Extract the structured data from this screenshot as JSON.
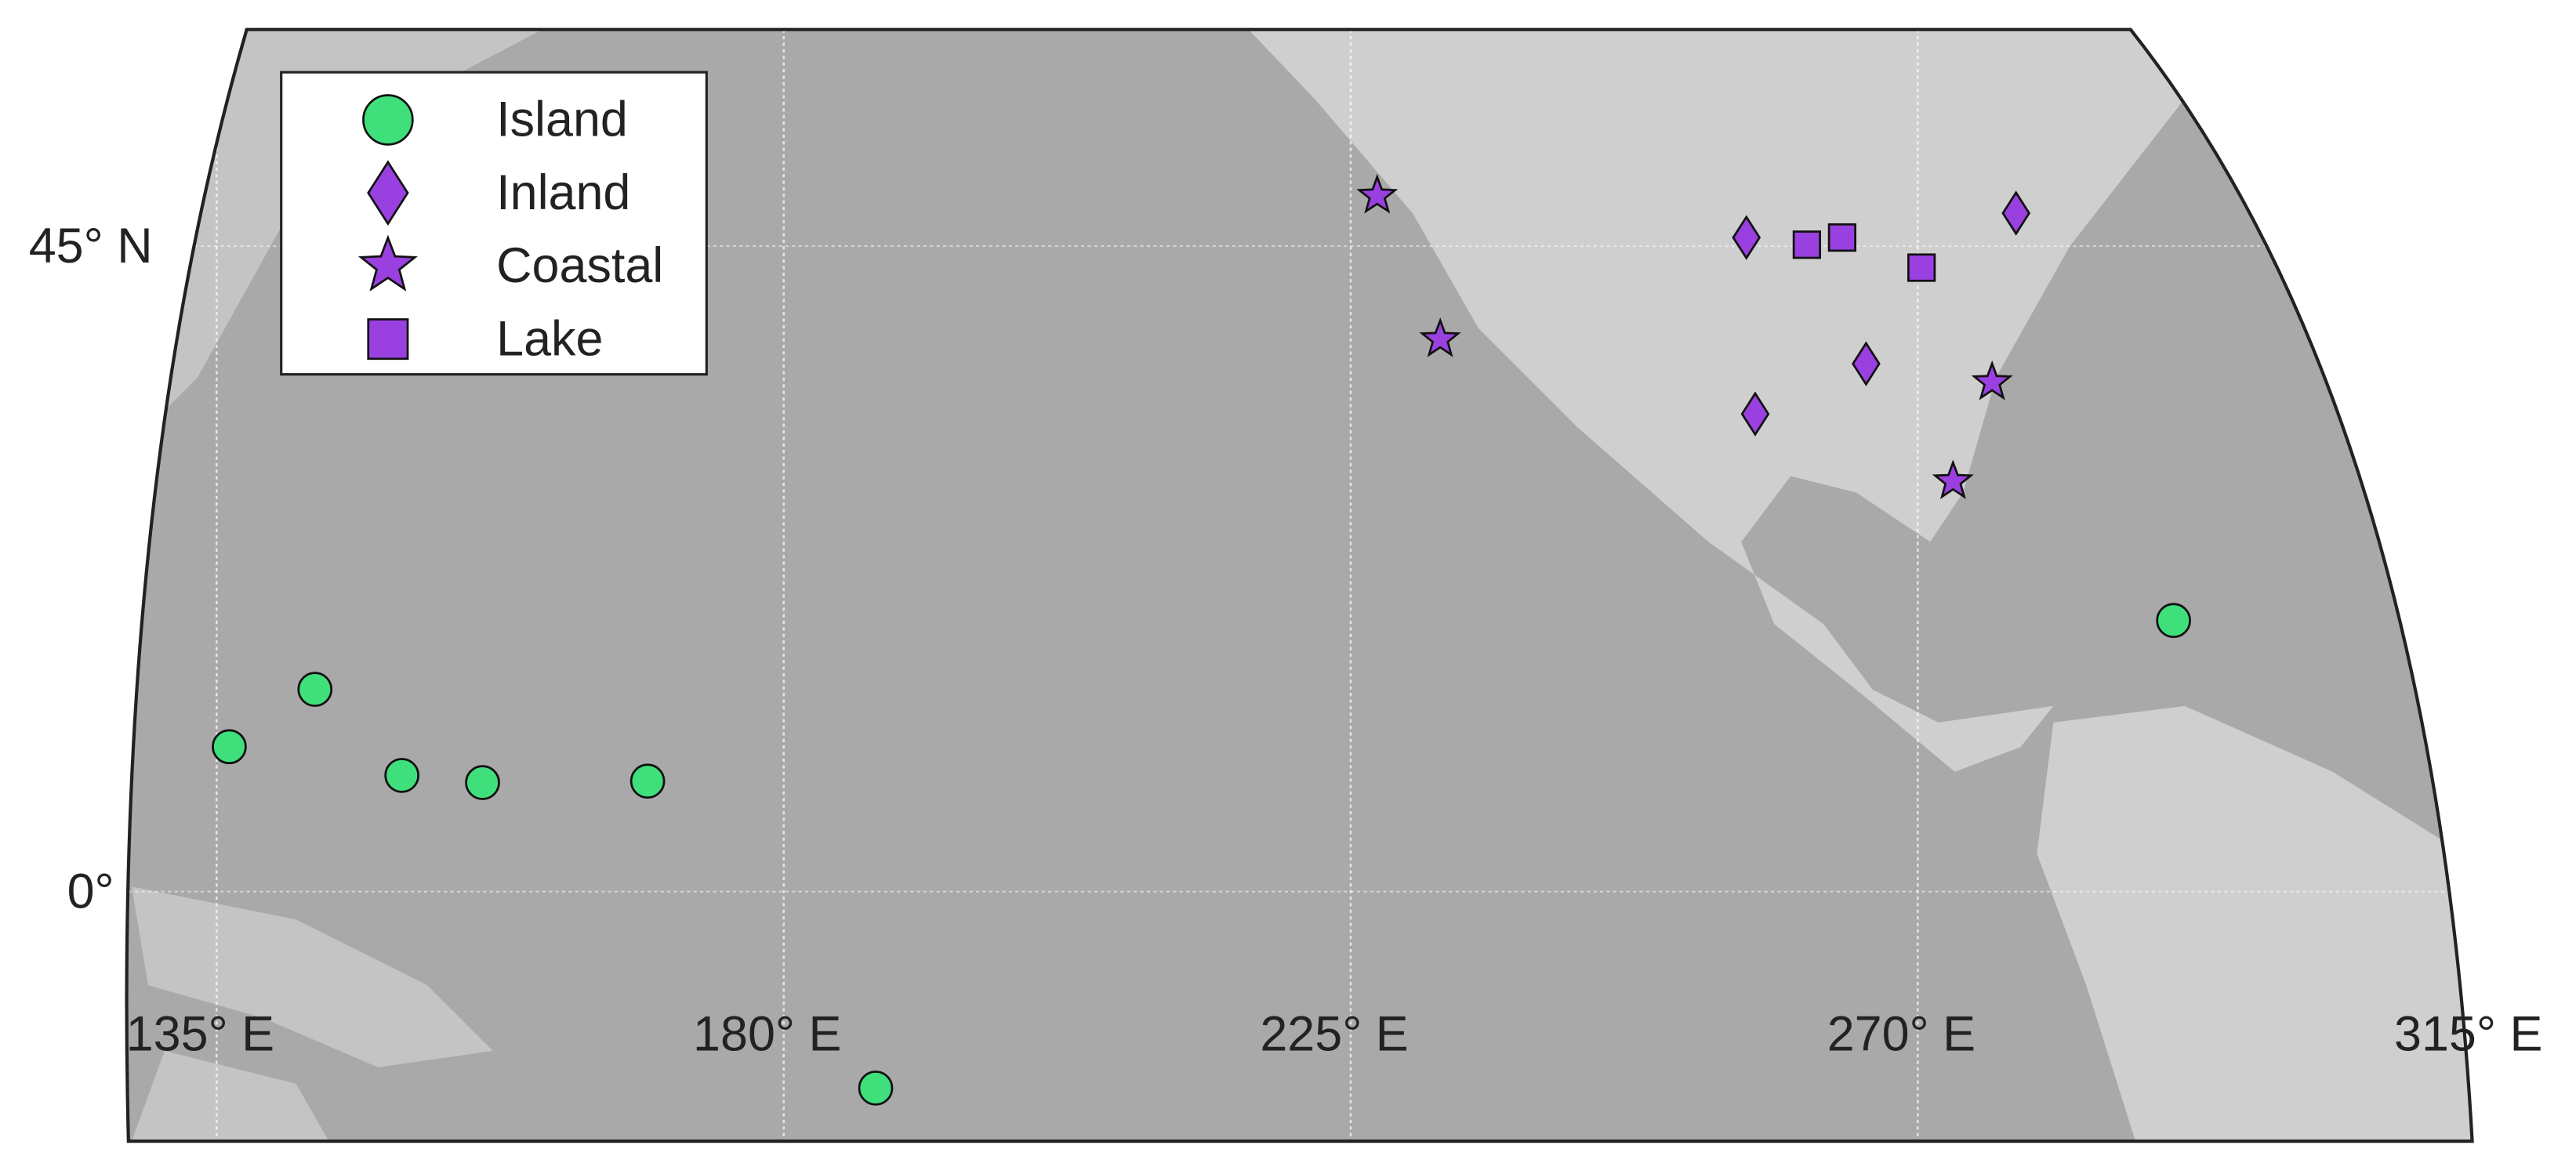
{
  "chart_data": {
    "type": "scatter",
    "xlim": [
      128,
      314
    ],
    "ylim": [
      -17.4,
      60.1
    ],
    "xticks": [
      {
        "value": 135,
        "label": "135° E"
      },
      {
        "value": 180,
        "label": "180° E"
      },
      {
        "value": 225,
        "label": "225° E"
      },
      {
        "value": 270,
        "label": "270° E"
      },
      {
        "value": 315,
        "label": "315° E"
      }
    ],
    "yticks": [
      {
        "value": 0,
        "label": "0°"
      },
      {
        "value": 45,
        "label": "45° N"
      }
    ],
    "grid": true,
    "legend": "upper left",
    "series": [
      {
        "name": "Island",
        "marker": "circle",
        "color": "#3fe07c",
        "x": [
          136.0,
          142.8,
          149.7,
          156.1,
          169.2,
          187.3,
          290.3
        ],
        "values": [
          10.1,
          14.1,
          8.1,
          7.6,
          7.7,
          -13.7,
          18.9
        ]
      },
      {
        "name": "Inland",
        "marker": "diamond",
        "color": "#9a40e0",
        "x": [
          256.4,
          265.9,
          257.1,
          277.8
        ],
        "values": [
          45.6,
          36.8,
          33.3,
          47.3
        ]
      },
      {
        "name": "Coastal",
        "marker": "star",
        "color": "#9a40e0",
        "x": [
          227.1,
          232.1,
          275.9,
          272.8
        ],
        "values": [
          48.5,
          38.5,
          35.5,
          28.6
        ]
      },
      {
        "name": "Lake",
        "marker": "square",
        "color": "#9a40e0",
        "x": [
          261.2,
          264.0,
          270.3
        ],
        "values": [
          45.1,
          45.6,
          43.5
        ]
      }
    ]
  }
}
